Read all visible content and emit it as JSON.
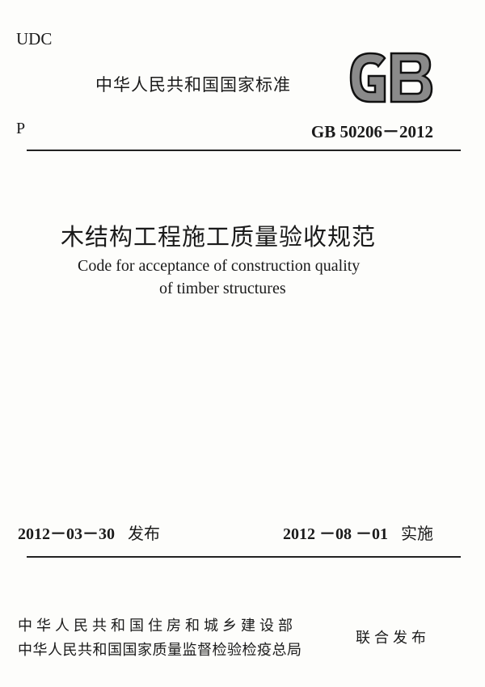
{
  "header": {
    "udc": "UDC",
    "standard_type": "中华人民共和国国家标准",
    "logo_text": "GB",
    "classification": "P",
    "code": "GB 50206－2012"
  },
  "title": {
    "chinese": "木结构工程施工质量验收规范",
    "english_line1": "Code for acceptance of construction quality",
    "english_line2": "of timber structures"
  },
  "dates": {
    "issue_date": "2012－03－30",
    "issue_label": "发布",
    "implement_date": "2012 －08 －01",
    "implement_label": "实施"
  },
  "issuers": {
    "org1": "中华人民共和国住房和城乡建设部",
    "org2": "中华人民共和国国家质量监督检验检疫总局",
    "joint_label": "联合发布"
  }
}
